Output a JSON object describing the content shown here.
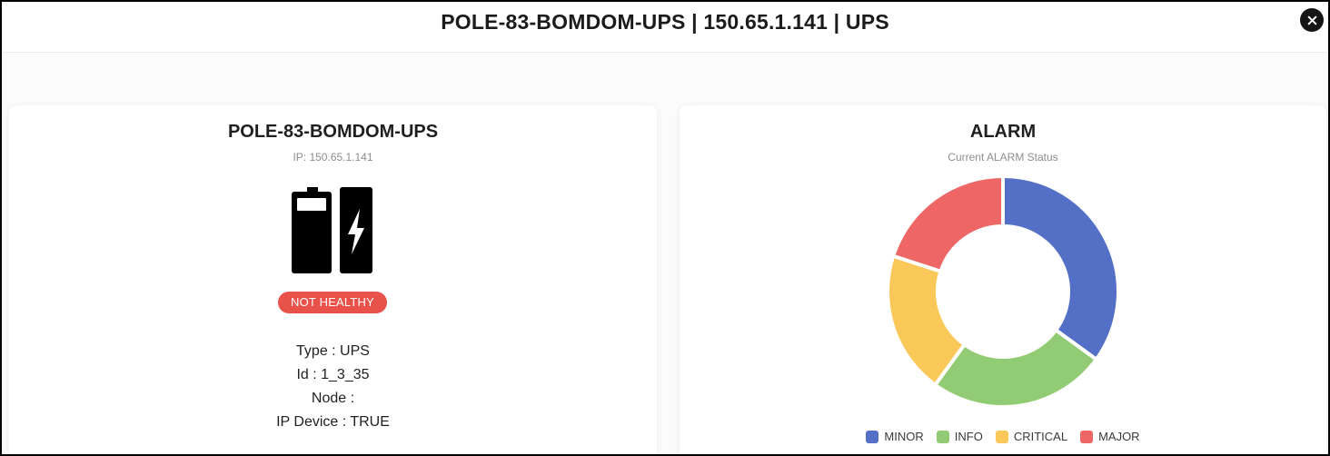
{
  "modal": {
    "title": "POLE-83-BOMDOM-UPS | 150.65.1.141 | UPS"
  },
  "device_card": {
    "name": "POLE-83-BOMDOM-UPS",
    "ip_line": "IP: 150.65.1.141",
    "icon": "battery-charging-icon",
    "status": "NOT HEALTHY",
    "status_color": "#e8524a",
    "details": [
      "Type : UPS",
      "Id : 1_3_35",
      "Node :",
      "IP Device : TRUE"
    ]
  },
  "alarm_card": {
    "title": "ALARM",
    "subtitle": "Current ALARM Status"
  },
  "chart_data": {
    "type": "pie",
    "donut": true,
    "categories": [
      "MINOR",
      "INFO",
      "CRITICAL",
      "MAJOR"
    ],
    "values": [
      35,
      25,
      20,
      20
    ],
    "colors": [
      "#5470c6",
      "#91cc75",
      "#fac858",
      "#ee6666"
    ],
    "legend_position": "bottom"
  }
}
